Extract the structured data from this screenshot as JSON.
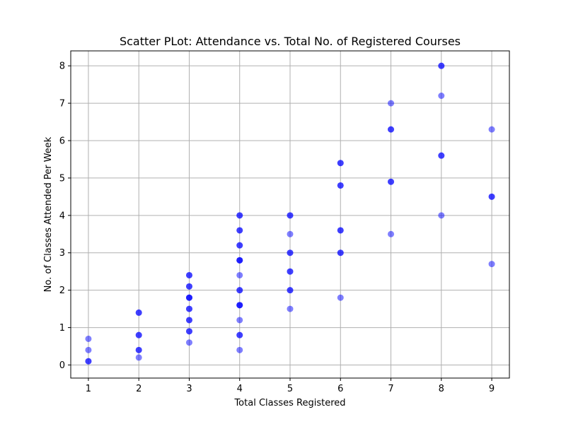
{
  "chart_data": {
    "type": "scatter",
    "title": "Scatter PLot: Attendance vs. Total No. of Registered Courses",
    "xlabel": "Total Classes Registered",
    "ylabel": "No. of Classes Attended Per Week",
    "xlim": [
      0.65,
      9.35
    ],
    "ylim": [
      -0.35,
      8.4
    ],
    "xticks": [
      1,
      2,
      3,
      4,
      5,
      6,
      7,
      8,
      9
    ],
    "yticks": [
      0,
      1,
      2,
      3,
      4,
      5,
      6,
      7,
      8
    ],
    "grid": true,
    "marker_color": "#0000ff",
    "points": [
      {
        "x": 1,
        "y": 0.7
      },
      {
        "x": 1,
        "y": 0.4
      },
      {
        "x": 1,
        "y": 0.1
      },
      {
        "x": 1,
        "y": 0.1
      },
      {
        "x": 2,
        "y": 1.4
      },
      {
        "x": 2,
        "y": 1.4
      },
      {
        "x": 2,
        "y": 0.8
      },
      {
        "x": 2,
        "y": 0.8
      },
      {
        "x": 2,
        "y": 0.4
      },
      {
        "x": 2,
        "y": 0.4
      },
      {
        "x": 2,
        "y": 0.2
      },
      {
        "x": 3,
        "y": 2.4
      },
      {
        "x": 3,
        "y": 2.4
      },
      {
        "x": 3,
        "y": 2.1
      },
      {
        "x": 3,
        "y": 2.1
      },
      {
        "x": 3,
        "y": 1.8
      },
      {
        "x": 3,
        "y": 1.8
      },
      {
        "x": 3,
        "y": 1.8
      },
      {
        "x": 3,
        "y": 1.5
      },
      {
        "x": 3,
        "y": 1.5
      },
      {
        "x": 3,
        "y": 1.2
      },
      {
        "x": 3,
        "y": 1.2
      },
      {
        "x": 3,
        "y": 0.9
      },
      {
        "x": 3,
        "y": 0.9
      },
      {
        "x": 3,
        "y": 0.6
      },
      {
        "x": 4,
        "y": 4.0
      },
      {
        "x": 4,
        "y": 4.0
      },
      {
        "x": 4,
        "y": 3.6
      },
      {
        "x": 4,
        "y": 3.6
      },
      {
        "x": 4,
        "y": 3.2
      },
      {
        "x": 4,
        "y": 3.2
      },
      {
        "x": 4,
        "y": 2.8
      },
      {
        "x": 4,
        "y": 2.8
      },
      {
        "x": 4,
        "y": 2.8
      },
      {
        "x": 4,
        "y": 2.4
      },
      {
        "x": 4,
        "y": 2.0
      },
      {
        "x": 4,
        "y": 2.0
      },
      {
        "x": 4,
        "y": 1.6
      },
      {
        "x": 4,
        "y": 1.6
      },
      {
        "x": 4,
        "y": 1.6
      },
      {
        "x": 4,
        "y": 1.2
      },
      {
        "x": 4,
        "y": 0.8
      },
      {
        "x": 4,
        "y": 0.8
      },
      {
        "x": 4,
        "y": 0.4
      },
      {
        "x": 5,
        "y": 4.0
      },
      {
        "x": 5,
        "y": 4.0
      },
      {
        "x": 5,
        "y": 3.5
      },
      {
        "x": 5,
        "y": 3.0
      },
      {
        "x": 5,
        "y": 3.0
      },
      {
        "x": 5,
        "y": 2.5
      },
      {
        "x": 5,
        "y": 2.5
      },
      {
        "x": 5,
        "y": 2.0
      },
      {
        "x": 5,
        "y": 2.0
      },
      {
        "x": 5,
        "y": 1.5
      },
      {
        "x": 6,
        "y": 5.4
      },
      {
        "x": 6,
        "y": 5.4
      },
      {
        "x": 6,
        "y": 4.8
      },
      {
        "x": 6,
        "y": 4.8
      },
      {
        "x": 6,
        "y": 3.6
      },
      {
        "x": 6,
        "y": 3.6
      },
      {
        "x": 6,
        "y": 3.0
      },
      {
        "x": 6,
        "y": 3.0
      },
      {
        "x": 6,
        "y": 1.8
      },
      {
        "x": 7,
        "y": 7.0
      },
      {
        "x": 7,
        "y": 6.3
      },
      {
        "x": 7,
        "y": 6.3
      },
      {
        "x": 7,
        "y": 4.9
      },
      {
        "x": 7,
        "y": 4.9
      },
      {
        "x": 7,
        "y": 3.5
      },
      {
        "x": 8,
        "y": 8.0
      },
      {
        "x": 8,
        "y": 8.0
      },
      {
        "x": 8,
        "y": 7.2
      },
      {
        "x": 8,
        "y": 5.6
      },
      {
        "x": 8,
        "y": 5.6
      },
      {
        "x": 8,
        "y": 4.0
      },
      {
        "x": 9,
        "y": 6.3
      },
      {
        "x": 9,
        "y": 4.5
      },
      {
        "x": 9,
        "y": 4.5
      },
      {
        "x": 9,
        "y": 2.7
      }
    ]
  }
}
